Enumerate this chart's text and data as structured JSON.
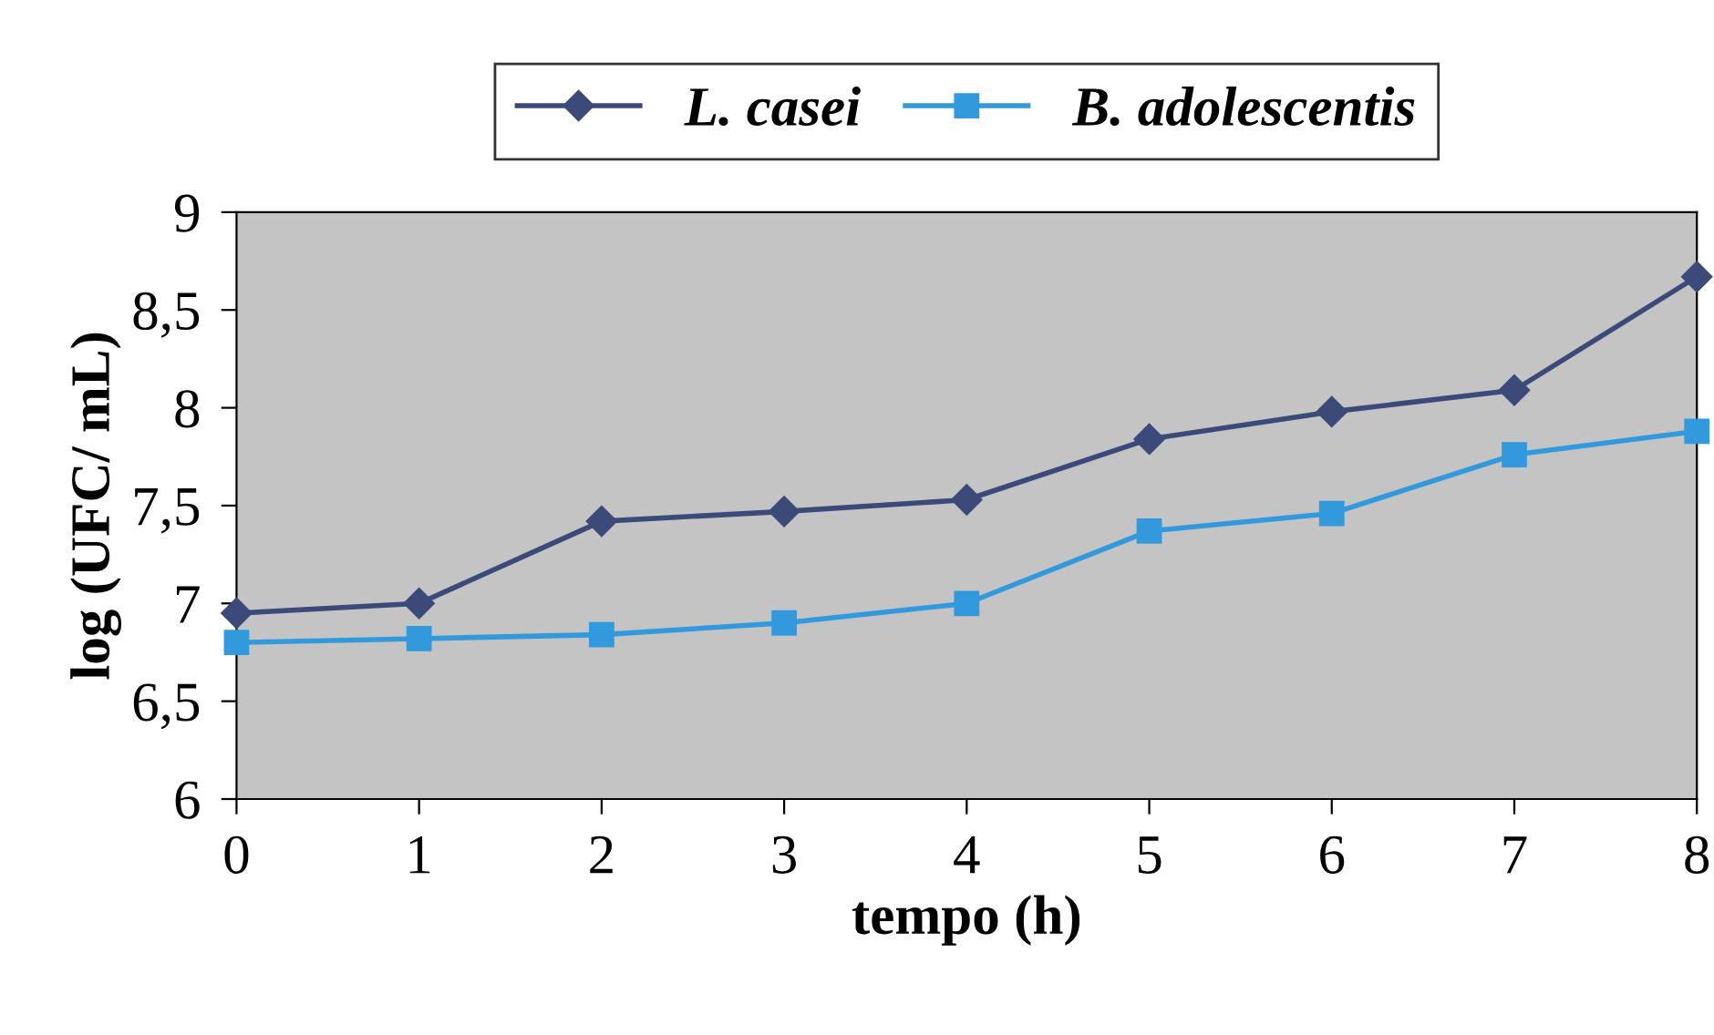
{
  "chart_data": {
    "type": "line",
    "xlabel": "tempo (h)",
    "ylabel": "log (UFC/ mL)",
    "x": [
      0,
      1,
      2,
      3,
      4,
      5,
      6,
      7,
      8
    ],
    "series": [
      {
        "name": "L. casei",
        "color": "#3b4a78",
        "marker": "diamond",
        "values": [
          6.95,
          7.0,
          7.42,
          7.47,
          7.53,
          7.84,
          7.98,
          8.09,
          8.67
        ]
      },
      {
        "name": "B. adolescentis",
        "color": "#3399dd",
        "marker": "square",
        "values": [
          6.8,
          6.82,
          6.84,
          6.9,
          7.0,
          7.37,
          7.46,
          7.76,
          7.88
        ]
      }
    ],
    "xlim": [
      0,
      8
    ],
    "xticks": [
      0,
      1,
      2,
      3,
      4,
      5,
      6,
      7,
      8
    ],
    "ylim": [
      6,
      9
    ],
    "yticks": [
      {
        "value": 6,
        "label": "6"
      },
      {
        "value": 6.5,
        "label": "6,5"
      },
      {
        "value": 7,
        "label": "7"
      },
      {
        "value": 7.5,
        "label": "7,5"
      },
      {
        "value": 8,
        "label": "8"
      },
      {
        "value": 8.5,
        "label": "8,5"
      },
      {
        "value": 9,
        "label": "9"
      }
    ],
    "grid": false,
    "legend": "top",
    "line_style": "solid"
  }
}
